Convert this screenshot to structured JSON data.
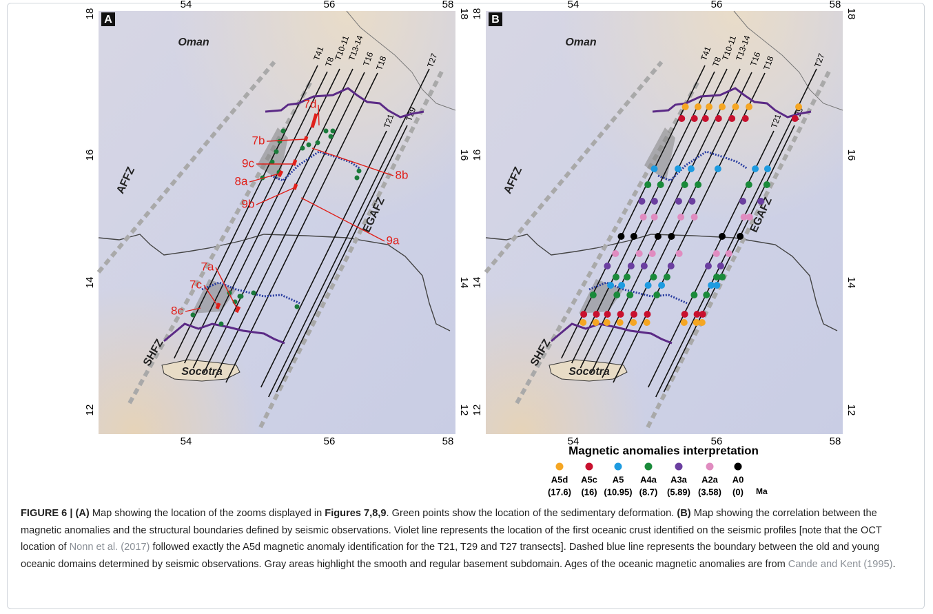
{
  "figure": {
    "panels": [
      {
        "letter": "A",
        "places": [
          "Oman",
          "AFFZ",
          "SHFZ",
          "EGAFZ",
          "Socotra"
        ],
        "transects": [
          "T41",
          "T8",
          "T10-11",
          "T13-14",
          "T16",
          "T18",
          "T21",
          "T29",
          "T27"
        ],
        "lon_ticks": [
          "54",
          "56",
          "58"
        ],
        "lat_ticks": [
          "18",
          "16",
          "14",
          "12"
        ],
        "zoom_labels": [
          "7d",
          "7b",
          "9c",
          "8a",
          "9b",
          "8b",
          "9a",
          "7a",
          "7c",
          "8c"
        ]
      },
      {
        "letter": "B",
        "places": [
          "Oman",
          "AFFZ",
          "SHFZ",
          "EGAFZ",
          "Socotra"
        ],
        "transects": [
          "T41",
          "T8",
          "T10-11",
          "T13-14",
          "T16",
          "T18",
          "T21",
          "T29",
          "T27"
        ],
        "lon_ticks": [
          "54",
          "56",
          "58"
        ],
        "lat_ticks": [
          "18",
          "16",
          "14",
          "12"
        ]
      }
    ],
    "legend": {
      "title": "Magnetic anomalies interpretation",
      "unit": "Ma",
      "items": [
        {
          "code": "A5d",
          "age": "(17.6)",
          "color": "#f5a623"
        },
        {
          "code": "A5c",
          "age": "(16)",
          "color": "#c8102e"
        },
        {
          "code": "A5",
          "age": "(10.95)",
          "color": "#1e9be0"
        },
        {
          "code": "A4a",
          "age": "(8.7)",
          "color": "#1a8a3a"
        },
        {
          "code": "A3a",
          "age": "(5.89)",
          "color": "#6b3fa0"
        },
        {
          "code": "A2a",
          "age": "(3.58)",
          "color": "#e08cc0"
        },
        {
          "code": "A0",
          "age": "(0)",
          "color": "#000000"
        }
      ]
    },
    "caption": [
      "FIGURE 6 | (A)",
      " Map showing the location of the zooms displayed in ",
      "Figures 7,8,9",
      ". Green points show the location of the sedimentary deformation. ",
      "(B)",
      " Map showing the correlation between the magnetic anomalies and the structural boundaries defined by seismic observations. Violet line represents the location of the first oceanic crust identified on the seismic profiles [note that the OCT location of ",
      "Nonn et al. (2017)",
      " followed exactly the A5d magnetic anomaly identification for the T21, T29 and T27 transects]. Dashed blue line represents the boundary between the old and young oceanic domains determined by seismic observations. Gray areas highlight the smooth and regular basement subdomain. Ages of the oceanic magnetic anomalies are from ",
      "Cande and Kent (1995)",
      "."
    ]
  }
}
